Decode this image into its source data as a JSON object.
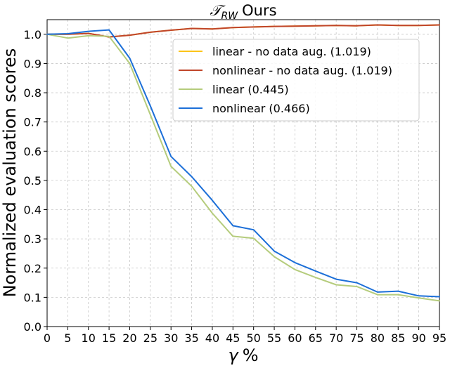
{
  "chart_data": {
    "type": "line",
    "title": "Ours",
    "title_symbol": "𝒯",
    "title_subscript": "RW",
    "xlabel_symbol": "γ",
    "xlabel_unit": "%",
    "ylabel": "Normalized evaluation scores",
    "xlim": [
      0,
      95
    ],
    "ylim": [
      0,
      1.05
    ],
    "x_ticks": [
      "0",
      "5",
      "10",
      "15",
      "20",
      "25",
      "30",
      "35",
      "40",
      "45",
      "50",
      "55",
      "60",
      "65",
      "70",
      "75",
      "80",
      "85",
      "90",
      "95"
    ],
    "y_ticks": [
      "0.0",
      "0.1",
      "0.2",
      "0.3",
      "0.4",
      "0.5",
      "0.6",
      "0.7",
      "0.8",
      "0.9",
      "1.0"
    ],
    "grid": true,
    "legend_position": "top-right",
    "x": [
      0,
      5,
      10,
      15,
      20,
      25,
      30,
      35,
      40,
      45,
      50,
      55,
      60,
      65,
      70,
      75,
      80,
      85,
      90,
      95
    ],
    "series": [
      {
        "name": "linear - no data aug. (1.019)",
        "color": "#fcc419",
        "values": [
          1.0,
          1.0,
          1.003,
          0.991,
          0.997,
          1.007,
          1.014,
          1.02,
          1.018,
          1.023,
          1.025,
          1.027,
          1.028,
          1.029,
          1.03,
          1.029,
          1.032,
          1.03,
          1.03,
          1.032
        ]
      },
      {
        "name": "nonlinear - no data aug. (1.019)",
        "color": "#c0452a",
        "values": [
          1.0,
          1.0,
          1.003,
          0.991,
          0.997,
          1.007,
          1.014,
          1.02,
          1.018,
          1.023,
          1.025,
          1.027,
          1.028,
          1.029,
          1.03,
          1.029,
          1.032,
          1.03,
          1.03,
          1.032
        ]
      },
      {
        "name": "linear (0.445)",
        "color": "#b5cc7c",
        "values": [
          1.0,
          0.987,
          0.995,
          0.993,
          0.9,
          0.725,
          0.548,
          0.48,
          0.388,
          0.309,
          0.302,
          0.239,
          0.195,
          0.168,
          0.143,
          0.137,
          0.109,
          0.109,
          0.098,
          0.088
        ]
      },
      {
        "name": "nonlinear (0.466)",
        "color": "#1c6fd8",
        "values": [
          1.0,
          1.002,
          1.01,
          1.015,
          0.918,
          0.755,
          0.582,
          0.513,
          0.432,
          0.345,
          0.331,
          0.258,
          0.219,
          0.19,
          0.162,
          0.15,
          0.118,
          0.121,
          0.105,
          0.102
        ]
      }
    ]
  }
}
